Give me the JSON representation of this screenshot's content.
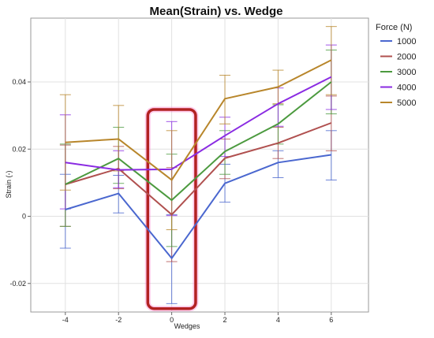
{
  "chart_data": {
    "type": "line",
    "title": "Mean(Strain) vs. Wedge",
    "xlabel": "Wedges",
    "ylabel": "Strain (-)",
    "x": [
      -4,
      -2,
      0,
      2,
      4,
      6
    ],
    "xticks": [
      "-4",
      "-2",
      "0",
      "2",
      "4",
      "6"
    ],
    "yticks": [
      "-0.02",
      "0",
      "0.02",
      "0.04"
    ],
    "xlim": [
      -5.3,
      7.4
    ],
    "ylim": [
      -0.0285,
      0.059
    ],
    "grid": true,
    "legend": {
      "title": "Force (N)",
      "position": "right"
    },
    "series": [
      {
        "name": "1000",
        "color": "#4a67cf",
        "values": [
          0.002,
          0.0068,
          -0.0125,
          0.0098,
          0.016,
          0.0183
        ],
        "err_low": [
          -0.0095,
          0.001,
          -0.026,
          0.0042,
          0.0115,
          0.0108
        ],
        "err_high": [
          0.0125,
          0.0122,
          0.0005,
          0.0155,
          0.0195,
          0.0255
        ]
      },
      {
        "name": "2000",
        "color": "#b0504f",
        "values": [
          0.0095,
          0.0142,
          0.0005,
          0.0173,
          0.0218,
          0.0278
        ],
        "err_low": [
          -0.003,
          0.0082,
          -0.0135,
          0.0112,
          0.0172,
          0.0195
        ],
        "err_high": [
          0.0212,
          0.0208,
          0.0145,
          0.023,
          0.0265,
          0.0358
        ]
      },
      {
        "name": "3000",
        "color": "#4c9a3f",
        "values": [
          0.0095,
          0.0172,
          0.0048,
          0.0193,
          0.0275,
          0.04
        ],
        "err_low": [
          -0.003,
          0.0098,
          -0.009,
          0.0125,
          0.0215,
          0.0305
        ],
        "err_high": [
          0.0215,
          0.0265,
          0.0185,
          0.0255,
          0.0332,
          0.0495
        ]
      },
      {
        "name": "4000",
        "color": "#8a2be2",
        "values": [
          0.016,
          0.0138,
          0.014,
          0.024,
          0.0335,
          0.0415
        ],
        "err_low": [
          0.0022,
          0.0085,
          0.0002,
          0.0178,
          0.0268,
          0.0318
        ],
        "err_high": [
          0.0302,
          0.0195,
          0.0282,
          0.0295,
          0.0382,
          0.051
        ]
      },
      {
        "name": "5000",
        "color": "#b8862b",
        "values": [
          0.022,
          0.023,
          0.0108,
          0.035,
          0.0385,
          0.0465
        ],
        "err_low": [
          0.0078,
          0.0135,
          -0.004,
          0.0275,
          0.0335,
          0.0362
        ],
        "err_high": [
          0.0362,
          0.033,
          0.0255,
          0.042,
          0.0435,
          0.0565
        ]
      }
    ],
    "highlight": {
      "x_range": [
        -0.9,
        0.9
      ],
      "y_range": [
        -0.0275,
        0.0318
      ],
      "color": "#b22222"
    }
  }
}
